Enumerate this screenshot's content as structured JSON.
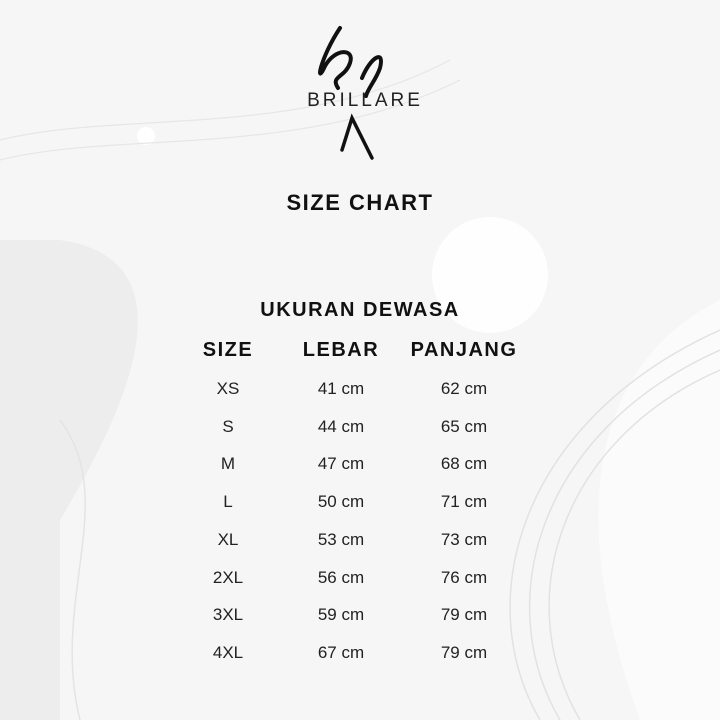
{
  "brand": {
    "name": "BRILLARE"
  },
  "title": "SIZE CHART",
  "subtitle": "UKURAN DEWASA",
  "headers": [
    "SIZE",
    "LEBAR",
    "PANJANG"
  ],
  "rows": [
    [
      "XS",
      "41 cm",
      "62 cm"
    ],
    [
      "S",
      "44 cm",
      "65 cm"
    ],
    [
      "M",
      "47 cm",
      "68 cm"
    ],
    [
      "L",
      "50 cm",
      "71 cm"
    ],
    [
      "XL",
      "53 cm",
      "73 cm"
    ],
    [
      "2XL",
      "56 cm",
      "76 cm"
    ],
    [
      "3XL",
      "59 cm",
      "79 cm"
    ],
    [
      "4XL",
      "67 cm",
      "79 cm"
    ]
  ]
}
